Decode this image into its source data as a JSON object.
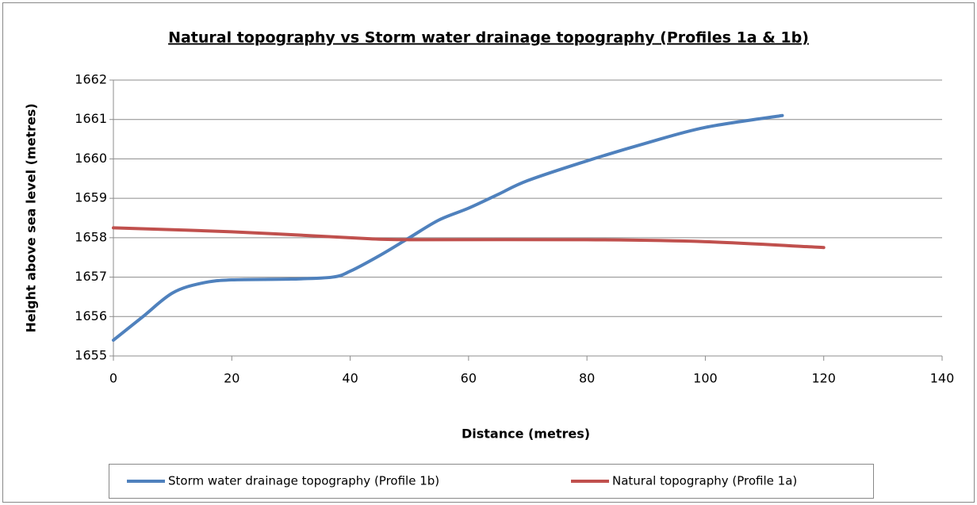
{
  "chart_data": {
    "type": "line",
    "title": "Natural topography vs Storm water drainage topography (Profiles 1a & 1b)",
    "x_label": "Distance (metres)",
    "y_label": "Height above sea level (metres)",
    "xlim": [
      0,
      140
    ],
    "xticks": [
      0,
      20,
      40,
      60,
      80,
      100,
      120,
      140
    ],
    "ylim": [
      1655,
      1662
    ],
    "yticks": [
      1655,
      1656,
      1657,
      1658,
      1659,
      1660,
      1661,
      1662
    ],
    "grid": true,
    "legend": "bottom",
    "series": [
      {
        "name": "Storm water drainage topography (Profile 1b)",
        "color": "#4f81bd",
        "x": [
          0,
          5,
          10,
          15,
          20,
          30,
          37,
          40,
          45,
          50,
          55,
          60,
          65,
          70,
          80,
          90,
          100,
          113
        ],
        "values": [
          1655.4,
          1656.0,
          1656.6,
          1656.85,
          1656.93,
          1656.95,
          1657.0,
          1657.15,
          1657.55,
          1658.0,
          1658.45,
          1658.75,
          1659.1,
          1659.45,
          1659.95,
          1660.4,
          1660.8,
          1661.1
        ]
      },
      {
        "name": "Natural topography (Profile 1a)",
        "color": "#c0504d",
        "x": [
          0,
          20,
          40,
          50,
          80,
          100,
          120
        ],
        "values": [
          1658.25,
          1658.15,
          1658.0,
          1657.95,
          1657.95,
          1657.9,
          1657.75
        ]
      }
    ]
  }
}
